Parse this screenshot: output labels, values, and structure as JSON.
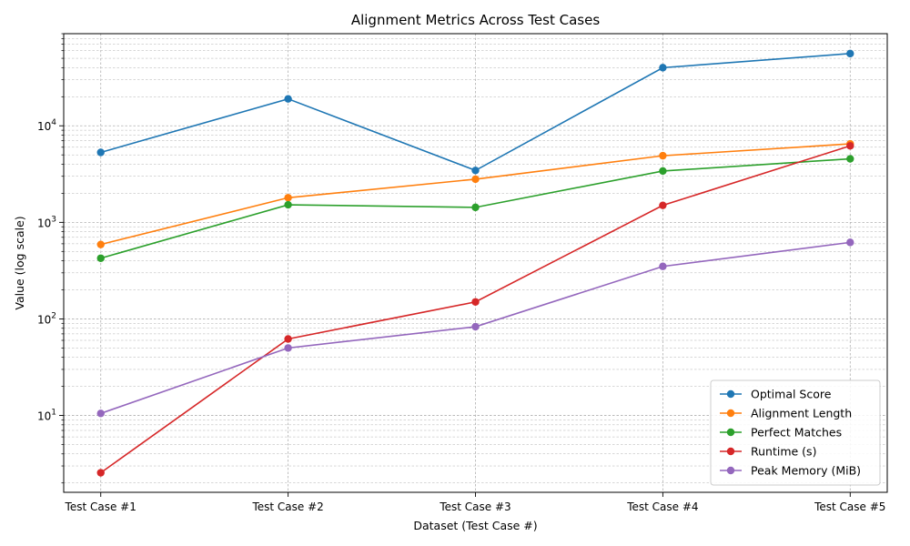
{
  "chart_data": {
    "type": "line",
    "title": "Alignment Metrics Across Test Cases",
    "xlabel": "Dataset (Test Case #)",
    "ylabel": "Value (log scale)",
    "yscale": "log",
    "ylim": [
      1.6,
      90000
    ],
    "grid": true,
    "legend_position": "bottom-right",
    "categories": [
      "Test Case #1",
      "Test Case #2",
      "Test Case #3",
      "Test Case #4",
      "Test Case #5"
    ],
    "y_ticks": [
      {
        "value": 10,
        "base": "10",
        "exp": "1"
      },
      {
        "value": 100,
        "base": "10",
        "exp": "2"
      },
      {
        "value": 1000,
        "base": "10",
        "exp": "3"
      },
      {
        "value": 10000,
        "base": "10",
        "exp": "4"
      }
    ],
    "series": [
      {
        "name": "Optimal Score",
        "color": "#1f77b4",
        "values": [
          5300,
          19000,
          3450,
          40000,
          56000
        ]
      },
      {
        "name": "Alignment Length",
        "color": "#ff7f0e",
        "values": [
          590,
          1800,
          2800,
          4900,
          6500
        ]
      },
      {
        "name": "Perfect Matches",
        "color": "#2ca02c",
        "values": [
          425,
          1520,
          1430,
          3400,
          4550
        ]
      },
      {
        "name": "Runtime (s)",
        "color": "#d62728",
        "values": [
          2.55,
          62,
          150,
          1500,
          6200
        ]
      },
      {
        "name": "Peak Memory (MiB)",
        "color": "#9467bd",
        "values": [
          10.5,
          50,
          83,
          350,
          620
        ]
      }
    ]
  }
}
